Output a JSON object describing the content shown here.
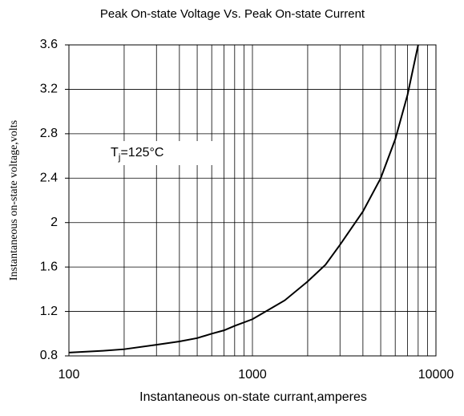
{
  "chart_data": {
    "type": "line",
    "title": "Peak On-state Voltage Vs. Peak On-state Current",
    "x_label": "Instantaneous on-state currant,amperes",
    "y_label": "Instantaneous on-state voltage,volts",
    "annotation": {
      "main": "T",
      "sub": "j",
      "rest": "=125°C"
    },
    "x_scale": "log",
    "xlim": [
      100,
      10000
    ],
    "xticks": [
      100,
      1000,
      10000
    ],
    "xminorticks": [
      200,
      300,
      400,
      500,
      600,
      700,
      800,
      900,
      2000,
      3000,
      4000,
      5000,
      6000,
      7000,
      8000,
      9000
    ],
    "ylim": [
      0.8,
      3.6
    ],
    "yticks": [
      0.8,
      1.2,
      1.6,
      2,
      2.4,
      2.8,
      3.2,
      3.6
    ],
    "grid": true,
    "series": [
      {
        "color": "#000000",
        "x": [
          100,
          150,
          200,
          300,
          400,
          500,
          600,
          700,
          800,
          1000,
          1500,
          2000,
          2500,
          3000,
          4000,
          5000,
          6000,
          7000,
          8000
        ],
        "values": [
          0.83,
          0.845,
          0.86,
          0.9,
          0.93,
          0.96,
          1.0,
          1.03,
          1.07,
          1.13,
          1.3,
          1.47,
          1.62,
          1.8,
          2.1,
          2.4,
          2.75,
          3.15,
          3.6
        ]
      }
    ]
  }
}
